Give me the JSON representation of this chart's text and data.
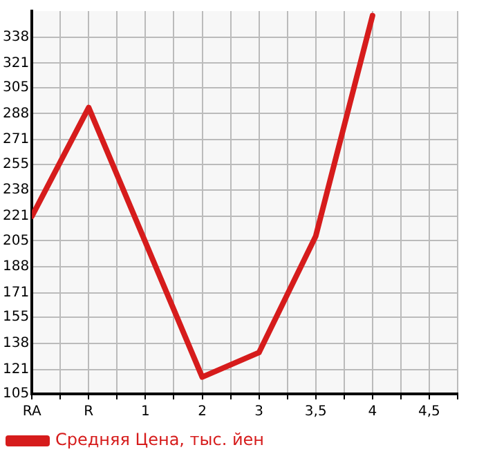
{
  "chart_data": {
    "type": "line",
    "categories": [
      "RA",
      "R",
      "1",
      "2",
      "3",
      "3,5",
      "4",
      "4,5"
    ],
    "series": [
      {
        "name": "Средняя Цена, тыс. йен",
        "color": "#d61c1c",
        "values": [
          221,
          292,
          null,
          116,
          132,
          208,
          352,
          null
        ]
      }
    ],
    "ylim": [
      105,
      355
    ],
    "yticks": [
      105,
      121,
      138,
      155,
      171,
      188,
      205,
      221,
      238,
      255,
      271,
      288,
      305,
      321,
      338
    ],
    "grid": true,
    "legend": "bottom left",
    "marker": "none",
    "line_style": "solid"
  }
}
